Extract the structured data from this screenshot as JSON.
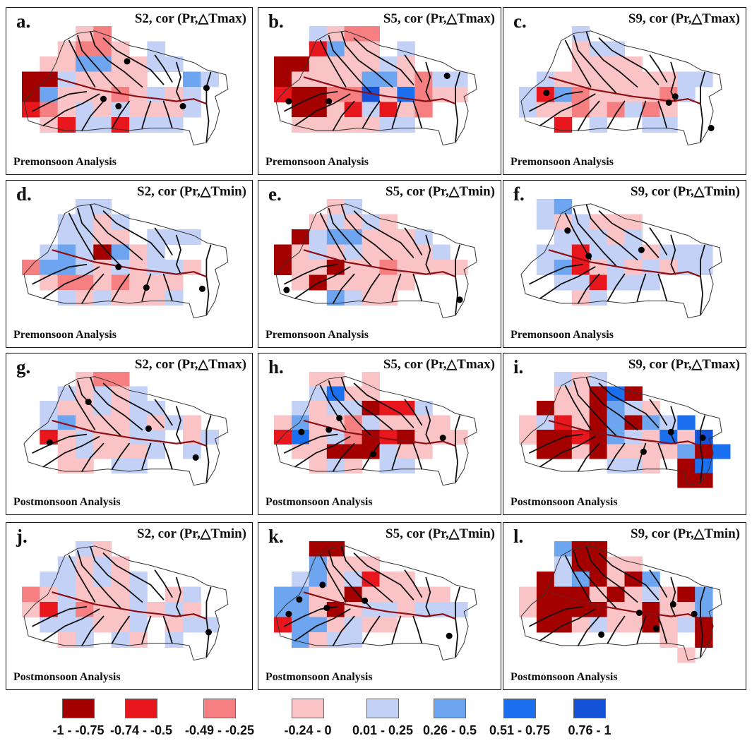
{
  "colors": {
    "scale": [
      "#a50000",
      "#e8171d",
      "#f57f81",
      "#fac3c5",
      "#c4d1f6",
      "#6da5f0",
      "#1a70ee",
      "#1552d8"
    ],
    "river": "#111111",
    "mainstem": "#8b0f14",
    "outline": "#333333"
  },
  "legend": {
    "ranges": [
      "-1 - -0.75",
      "-0.74 - -0.5",
      "-0.49 - -0.25",
      "-0.24 - 0",
      "0.01 - 0.25",
      "0.26 - 0.5",
      "0.51 - 0.75",
      "0.76 - 1"
    ]
  },
  "panels": [
    {
      "letter": "a.",
      "title": "S2, cor (Pr,△Tmax)",
      "footer": "Premonsoon Analysis",
      "grid": [
        "...32.......",
        "..3223.4....",
        ".33553344...",
        "0043333..54.",
        "0533323434..",
        "1234343334..",
        ".31441444...",
        "............"
      ],
      "dots": [
        [
          0.38,
          0.6
        ],
        [
          0.45,
          0.66
        ],
        [
          0.75,
          0.66
        ],
        [
          0.86,
          0.51
        ],
        [
          0.49,
          0.29
        ]
      ]
    },
    {
      "letter": "b.",
      "title": "S5, cor (Pr,△Tmax)",
      "footer": "Premonsoon Analysis",
      "grid": [
        "..4322......",
        "..1533.4....",
        "00333343....",
        "03333553244.",
        "10022736233.",
        ".00314132...",
        ".3333344....",
        "............"
      ],
      "dots": [
        [
          0.07,
          0.62
        ],
        [
          0.26,
          0.62
        ],
        [
          0.82,
          0.41
        ]
      ]
    },
    {
      "letter": "c.",
      "title": "S9, cor (Pr,△Tmax)",
      "footer": "Premonsoon Analysis",
      "grid": [
        "...4........",
        "...344......",
        "...3333.....",
        ".4333333344.",
        "4152333324..",
        "433232423...",
        "..1.4..44...",
        "............"
      ],
      "dots": [
        [
          0.13,
          0.55
        ],
        [
          0.74,
          0.58
        ],
        [
          0.71,
          0.63
        ],
        [
          0.91,
          0.84
        ]
      ]
    },
    {
      "letter": "d.",
      "title": "S2, cor (Pr,△Tmin)",
      "footer": "Premonsoon Analysis",
      "grid": [
        "...44.......",
        "..4434......",
        "..4433.444..",
        ".4540534....",
        "2554343443..",
        ".32232333...",
        "..4343334...",
        "............"
      ],
      "dots": [
        [
          0.45,
          0.56
        ],
        [
          0.58,
          0.73
        ],
        [
          0.84,
          0.74
        ]
      ]
    },
    {
      "letter": "e.",
      "title": "S5, cor (Pr,△Tmin)",
      "footer": "Premonsoon Analysis",
      "grid": [
        "...34.......",
        "..34343.....",
        ".04553334...",
        "0343433334..",
        "03303323333.",
        ".3033333....",
        "...5433.....",
        "............"
      ],
      "dots": [
        [
          0.06,
          0.75
        ],
        [
          0.88,
          0.83
        ]
      ]
    },
    {
      "letter": "f.",
      "title": "S9, cor (Pr,△Tmin)",
      "footer": "Premonsoon Analysis",
      "grid": [
        ".45.........",
        ".434333.....",
        "..44434.....",
        ".4414443444.",
        ".4513434344.",
        "..441444....",
        "...34.......",
        "............"
      ],
      "dots": [
        [
          0.23,
          0.26
        ],
        [
          0.33,
          0.47
        ],
        [
          0.58,
          0.42
        ]
      ]
    },
    {
      "letter": "g.",
      "title": "S2, cor (Pr,△Tmax)",
      "footer": "Postmonsoon Analysis",
      "grid": [
        "...322......",
        "..43434.....",
        ".4334344....",
        ".453334343..",
        ".1343344.34.",
        "..343334.4..",
        "..33.44.....",
        "............"
      ],
      "dots": [
        [
          0.31,
          0.26
        ],
        [
          0.13,
          0.61
        ],
        [
          0.59,
          0.49
        ],
        [
          0.81,
          0.74
        ]
      ]
    },
    {
      "letter": "h.",
      "title": "S5, cor (Pr,△Tmax)",
      "footer": "Postmonsoon Analysis",
      "grid": [
        "..33.3......",
        "..4633......",
        ".43440114...",
        "3533243333..",
        "16342010333.",
        ".33000433...",
        "..343.44....",
        "............"
      ],
      "dots": [
        [
          0.13,
          0.52
        ],
        [
          0.26,
          0.5
        ],
        [
          0.31,
          0.4
        ],
        [
          0.47,
          0.71
        ],
        [
          0.8,
          0.57
        ]
      ]
    },
    {
      "letter": "i.",
      "title": "S9, cor (Pr,△Tmax)",
      "footer": "Postmonsoon Analysis",
      "grid": [
        "..434.......",
        "..33060.....",
        ".0330543....",
        "3413050546..",
        "30010543637.",
        ".00303333506",
        ".....443.06.",
        ".........00."
      ],
      "dots": [
        [
          0.59,
          0.69
        ],
        [
          0.72,
          0.52
        ],
        [
          0.87,
          0.57
        ]
      ]
    },
    {
      "letter": "j.",
      "title": "S2, cor (Pr,△Tmin)",
      "footer": "Postmonsoon Analysis",
      "grid": [
        "...43.......",
        "..4343......",
        ".443434.....",
        "2343334.34..",
        "3142334343..",
        ".444334.344.",
        "..34.43.4...",
        "............"
      ],
      "dots": [
        [
          0.87,
          0.75
        ]
      ]
    },
    {
      "letter": "k.",
      "title": "S5, cor (Pr,△Tmin)",
      "footer": "Postmonsoon Analysis",
      "grid": [
        "..00........",
        "..5333......",
        ".4534133....",
        "5533033333..",
        "55303443444.",
        "1553433.....",
        ".5344.......",
        "............"
      ],
      "dots": [
        [
          0.12,
          0.48
        ],
        [
          0.23,
          0.36
        ],
        [
          0.25,
          0.55
        ],
        [
          0.43,
          0.49
        ],
        [
          0.83,
          0.78
        ],
        [
          0.07,
          0.6
        ]
      ]
    },
    {
      "letter": "l.",
      "title": "S9, cor (Pr,△Tmin)",
      "footer": "Postmonsoon Analysis",
      "grid": [
        "..500.......",
        "..40033.....",
        ".0450305....",
        "30003034305.",
        "30000330335.",
        ".0034330340.",
        "........3.0.",
        ".........3.."
      ],
      "dots": [
        [
          0.57,
          0.59
        ],
        [
          0.65,
          0.72
        ],
        [
          0.73,
          0.52
        ],
        [
          0.83,
          0.6
        ],
        [
          0.39,
          0.77
        ]
      ]
    }
  ]
}
